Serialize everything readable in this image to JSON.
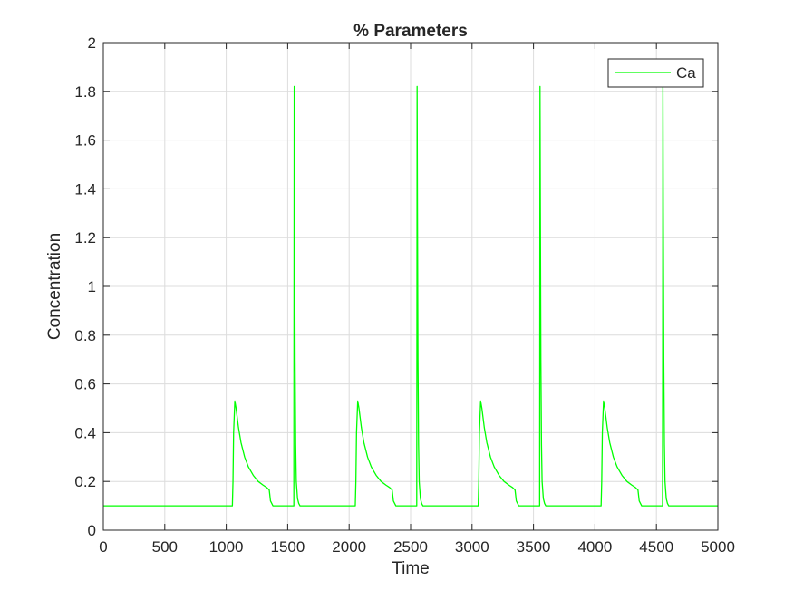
{
  "chart_data": {
    "type": "line",
    "title": "% Parameters",
    "xlabel": "Time",
    "ylabel": "Concentration",
    "xlim": [
      0,
      5000
    ],
    "ylim": [
      0,
      2
    ],
    "grid": true,
    "legend_location": "top-right",
    "x_ticks": [
      0,
      500,
      1000,
      1500,
      2000,
      2500,
      3000,
      3500,
      4000,
      4500,
      5000
    ],
    "y_ticks": [
      0,
      0.2,
      0.4,
      0.6,
      0.8,
      1,
      1.2,
      1.4,
      1.6,
      1.8,
      2
    ],
    "x_tick_labels": [
      "0",
      "500",
      "1000",
      "1500",
      "2000",
      "2500",
      "3000",
      "3500",
      "4000",
      "4500",
      "5000"
    ],
    "y_tick_labels": [
      "0",
      "0.2",
      "0.4",
      "0.6",
      "0.8",
      "1",
      "1.2",
      "1.4",
      "1.6",
      "1.8",
      "2"
    ],
    "series": [
      {
        "name": "Ca",
        "color": "#00ff00",
        "x": [
          0,
          1050,
          1055,
          1060,
          1070,
          1080,
          1100,
          1120,
          1150,
          1180,
          1220,
          1260,
          1300,
          1330,
          1350,
          1360,
          1380,
          1400,
          1550,
          1553,
          1556,
          1560,
          1565,
          1570,
          1580,
          1590,
          1600,
          1650,
          2050,
          2055,
          2060,
          2070,
          2080,
          2100,
          2120,
          2150,
          2180,
          2220,
          2260,
          2300,
          2330,
          2350,
          2360,
          2380,
          2400,
          2550,
          2553,
          2556,
          2560,
          2565,
          2570,
          2580,
          2590,
          2600,
          2650,
          3050,
          3055,
          3060,
          3070,
          3080,
          3100,
          3120,
          3150,
          3180,
          3220,
          3260,
          3300,
          3330,
          3350,
          3360,
          3380,
          3400,
          3550,
          3553,
          3556,
          3560,
          3565,
          3570,
          3580,
          3590,
          3600,
          3650,
          4050,
          4055,
          4060,
          4070,
          4080,
          4100,
          4120,
          4150,
          4180,
          4220,
          4260,
          4300,
          4330,
          4350,
          4360,
          4380,
          4400,
          4550,
          4553,
          4556,
          4560,
          4565,
          4570,
          4580,
          4590,
          4600,
          4650,
          5000
        ],
        "y": [
          0.1,
          0.1,
          0.2,
          0.4,
          0.53,
          0.5,
          0.42,
          0.36,
          0.3,
          0.26,
          0.225,
          0.2,
          0.185,
          0.175,
          0.165,
          0.12,
          0.1,
          0.1,
          0.1,
          1.82,
          1.3,
          0.7,
          0.35,
          0.2,
          0.13,
          0.11,
          0.1,
          0.1,
          0.1,
          0.2,
          0.4,
          0.53,
          0.5,
          0.42,
          0.36,
          0.3,
          0.26,
          0.225,
          0.2,
          0.185,
          0.175,
          0.165,
          0.12,
          0.1,
          0.1,
          0.1,
          1.82,
          1.3,
          0.7,
          0.35,
          0.2,
          0.13,
          0.11,
          0.1,
          0.1,
          0.1,
          0.2,
          0.4,
          0.53,
          0.5,
          0.42,
          0.36,
          0.3,
          0.26,
          0.225,
          0.2,
          0.185,
          0.175,
          0.165,
          0.12,
          0.1,
          0.1,
          0.1,
          1.82,
          1.3,
          0.7,
          0.35,
          0.2,
          0.13,
          0.11,
          0.1,
          0.1,
          0.1,
          0.2,
          0.4,
          0.53,
          0.5,
          0.42,
          0.36,
          0.3,
          0.26,
          0.225,
          0.2,
          0.185,
          0.175,
          0.165,
          0.12,
          0.1,
          0.1,
          0.1,
          1.82,
          1.3,
          0.7,
          0.35,
          0.2,
          0.13,
          0.11,
          0.1,
          0.1,
          0.1
        ]
      }
    ]
  }
}
